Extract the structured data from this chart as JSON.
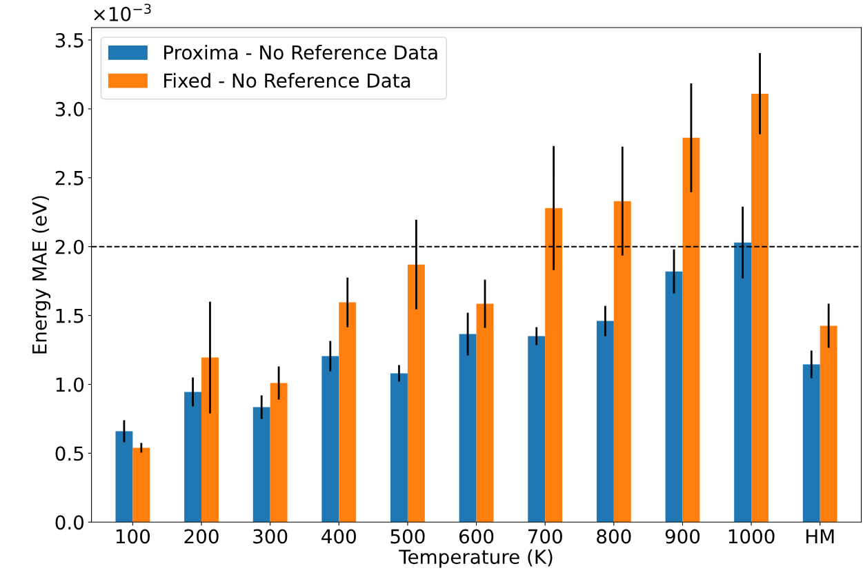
{
  "chart_data": {
    "type": "bar",
    "xlabel": "Temperature (K)",
    "ylabel": "Energy MAE (eV)",
    "categories": [
      "100",
      "200",
      "300",
      "400",
      "500",
      "600",
      "700",
      "800",
      "900",
      "1000",
      "HM"
    ],
    "series": [
      {
        "name": "Proxima - No Reference Data",
        "color": "#1f77b4",
        "values": [
          0.66,
          0.945,
          0.835,
          1.205,
          1.08,
          1.365,
          1.35,
          1.46,
          1.82,
          2.03,
          1.145
        ],
        "errors": [
          0.08,
          0.105,
          0.085,
          0.11,
          0.06,
          0.155,
          0.065,
          0.11,
          0.16,
          0.26,
          0.1
        ]
      },
      {
        "name": "Fixed - No Reference Data",
        "color": "#ff7f0e",
        "values": [
          0.54,
          1.195,
          1.01,
          1.595,
          1.87,
          1.585,
          2.28,
          2.33,
          2.79,
          3.11,
          1.425
        ],
        "errors": [
          0.035,
          0.405,
          0.12,
          0.18,
          0.325,
          0.175,
          0.45,
          0.395,
          0.395,
          0.295,
          0.16
        ]
      }
    ],
    "ylim": [
      0,
      3.59
    ],
    "yticks": [
      {
        "value": 0,
        "label": "0.0"
      },
      0.5,
      {
        "value": 1,
        "label": "1.0"
      },
      1.5,
      {
        "value": 2,
        "label": "2.0"
      },
      2.5,
      {
        "value": 3,
        "label": "3.0"
      },
      3.5
    ],
    "annotations": [
      "×10$^{−3}$"
    ],
    "ref_lines": [
      {
        "axis": "y",
        "value": 2.0,
        "color": "#000000",
        "line_style": "dashed"
      }
    ],
    "legend": "top left",
    "grid": false
  }
}
